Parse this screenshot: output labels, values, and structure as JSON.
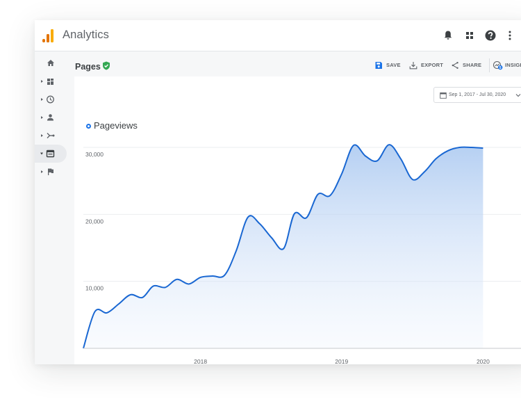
{
  "app": {
    "title": "Analytics"
  },
  "page": {
    "title": "Pages"
  },
  "actions": [
    {
      "label": "SAVE",
      "icon": "save-icon"
    },
    {
      "label": "EXPORT",
      "icon": "export-icon"
    },
    {
      "label": "SHARE",
      "icon": "share-icon"
    },
    {
      "label": "INSIGH",
      "icon": "insights-icon",
      "badge": "5"
    }
  ],
  "date_range": "Sep 1, 2017 - Jul 30, 2020",
  "colors": {
    "accent": "#1a73e8",
    "line": "#1967d2",
    "save": "#1a73e8",
    "verified": "#34a853",
    "logo_orange": "#f9ab00",
    "logo_dark": "#e37400"
  },
  "sidebar": {
    "items": [
      {
        "icon": "home-icon",
        "expandable": false,
        "active": false
      },
      {
        "icon": "dashboard-icon",
        "expandable": true,
        "active": false
      },
      {
        "icon": "clock-icon",
        "expandable": true,
        "active": false
      },
      {
        "icon": "person-icon",
        "expandable": true,
        "active": false
      },
      {
        "icon": "acquisition-icon",
        "expandable": true,
        "active": false
      },
      {
        "icon": "behavior-icon",
        "expandable": true,
        "active": true
      },
      {
        "icon": "flag-icon",
        "expandable": true,
        "active": false
      }
    ]
  },
  "topbar_icons": [
    "bell-icon",
    "apps-grid-icon",
    "help-icon",
    "more-vert-icon"
  ],
  "chart_data": {
    "type": "area",
    "series": [
      {
        "name": "Pageviews",
        "x": [
          "2017-09-01",
          "2017-10-01",
          "2017-11-01",
          "2017-12-01",
          "2018-01-01",
          "2018-02-01",
          "2018-03-01",
          "2018-04-01",
          "2018-05-01",
          "2018-06-01",
          "2018-07-01",
          "2018-08-01",
          "2018-09-01",
          "2018-10-01",
          "2018-11-01",
          "2018-12-01",
          "2019-01-01",
          "2019-02-01",
          "2019-03-01",
          "2019-04-01",
          "2019-05-01",
          "2019-06-01",
          "2019-07-01",
          "2019-08-01",
          "2019-09-01",
          "2019-10-01",
          "2019-11-01",
          "2019-12-01",
          "2020-01-01",
          "2020-02-01",
          "2020-03-01",
          "2020-04-01",
          "2020-05-01",
          "2020-06-01",
          "2020-07-01"
        ],
        "values": [
          0,
          5500,
          5300,
          6600,
          8000,
          7600,
          9300,
          9100,
          10300,
          9600,
          10600,
          10800,
          10900,
          14500,
          19600,
          18600,
          16500,
          14900,
          20100,
          19500,
          23000,
          22800,
          26000,
          30300,
          28700,
          28000,
          30400,
          28300,
          25200,
          26400,
          28300,
          29500,
          30000,
          30000,
          29900
        ]
      }
    ],
    "yticks": [
      "10,000",
      "20,000",
      "30,000"
    ],
    "ylim": [
      0,
      30000
    ],
    "xticks": [
      "2018",
      "2019",
      "2020"
    ],
    "grid": true
  }
}
